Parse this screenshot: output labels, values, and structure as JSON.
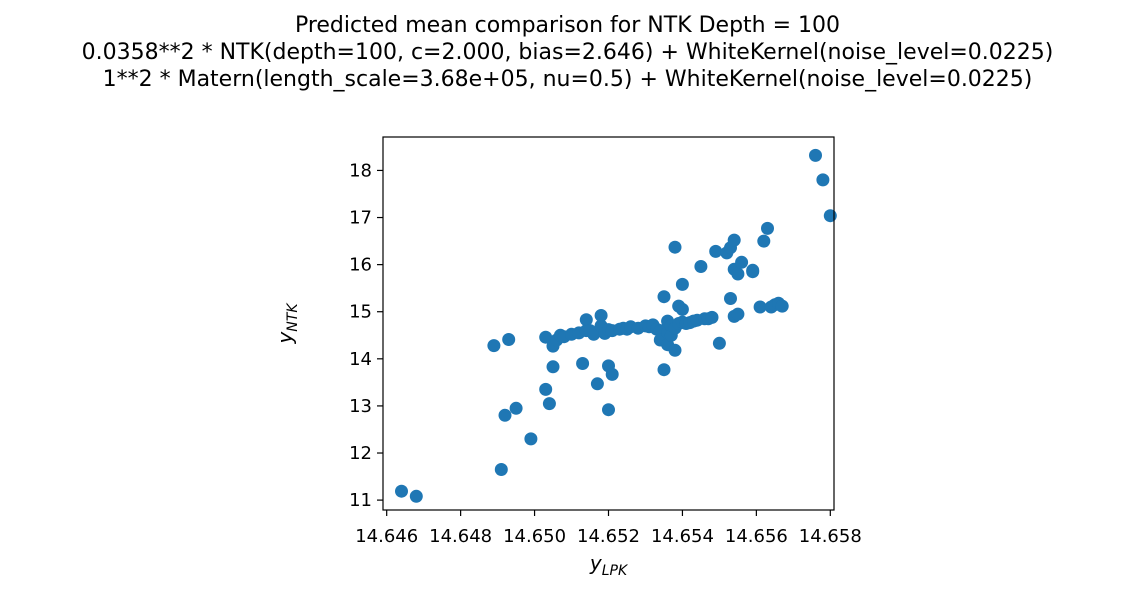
{
  "chart_data": {
    "type": "scatter",
    "title_lines": [
      "Predicted mean comparison for NTK Depth = 100",
      "0.0358**2 * NTK(depth=100, c=2.000, bias=2.646) + WhiteKernel(noise_level=0.0225)",
      "1**2 * Matern(length_scale=3.68e+05, nu=0.5) + WhiteKernel(noise_level=0.0225)"
    ],
    "xlabel": {
      "base": "y",
      "sub": "LPK"
    },
    "ylabel": {
      "base": "y",
      "sub": "NTK"
    },
    "xlim": [
      14.6459,
      14.6581
    ],
    "ylim": [
      10.79,
      18.71
    ],
    "xticks": [
      14.646,
      14.648,
      14.65,
      14.652,
      14.654,
      14.656,
      14.658
    ],
    "xtick_labels": [
      "14.646",
      "14.648",
      "14.650",
      "14.652",
      "14.654",
      "14.656",
      "14.658"
    ],
    "yticks": [
      11,
      12,
      13,
      14,
      15,
      16,
      17,
      18
    ],
    "ytick_labels": [
      "11",
      "12",
      "13",
      "14",
      "15",
      "16",
      "17",
      "18"
    ],
    "grid": false,
    "marker_color": "#1f77b4",
    "points": [
      [
        14.6464,
        11.19
      ],
      [
        14.6468,
        11.08
      ],
      [
        14.6489,
        14.28
      ],
      [
        14.6491,
        11.65
      ],
      [
        14.6492,
        12.8
      ],
      [
        14.6493,
        14.41
      ],
      [
        14.6495,
        12.95
      ],
      [
        14.6499,
        12.3
      ],
      [
        14.6503,
        13.35
      ],
      [
        14.6503,
        14.46
      ],
      [
        14.6504,
        13.05
      ],
      [
        14.6505,
        14.27
      ],
      [
        14.6505,
        13.83
      ],
      [
        14.6506,
        14.4
      ],
      [
        14.6507,
        14.5
      ],
      [
        14.6508,
        14.47
      ],
      [
        14.651,
        14.52
      ],
      [
        14.6512,
        14.55
      ],
      [
        14.6513,
        13.9
      ],
      [
        14.6514,
        14.6
      ],
      [
        14.6514,
        14.83
      ],
      [
        14.6515,
        14.6
      ],
      [
        14.6516,
        14.52
      ],
      [
        14.6517,
        13.47
      ],
      [
        14.6518,
        14.7
      ],
      [
        14.6518,
        14.92
      ],
      [
        14.6519,
        14.54
      ],
      [
        14.652,
        14.62
      ],
      [
        14.652,
        12.92
      ],
      [
        14.652,
        13.85
      ],
      [
        14.6521,
        13.67
      ],
      [
        14.6521,
        14.6
      ],
      [
        14.6523,
        14.63
      ],
      [
        14.6524,
        14.65
      ],
      [
        14.6525,
        14.63
      ],
      [
        14.6526,
        14.68
      ],
      [
        14.6528,
        14.65
      ],
      [
        14.653,
        14.7
      ],
      [
        14.6531,
        14.68
      ],
      [
        14.6532,
        14.72
      ],
      [
        14.6533,
        14.63
      ],
      [
        14.6534,
        14.6
      ],
      [
        14.6534,
        14.4
      ],
      [
        14.6535,
        15.32
      ],
      [
        14.6535,
        13.77
      ],
      [
        14.6536,
        14.55
      ],
      [
        14.6536,
        14.3
      ],
      [
        14.6536,
        14.8
      ],
      [
        14.6537,
        14.7
      ],
      [
        14.6537,
        14.5
      ],
      [
        14.6538,
        14.65
      ],
      [
        14.6538,
        14.18
      ],
      [
        14.6538,
        16.37
      ],
      [
        14.6539,
        14.75
      ],
      [
        14.6539,
        15.12
      ],
      [
        14.654,
        15.05
      ],
      [
        14.654,
        15.58
      ],
      [
        14.654,
        14.78
      ],
      [
        14.6541,
        14.75
      ],
      [
        14.6542,
        14.77
      ],
      [
        14.6543,
        14.8
      ],
      [
        14.6544,
        14.82
      ],
      [
        14.6545,
        15.96
      ],
      [
        14.6546,
        14.85
      ],
      [
        14.6547,
        14.85
      ],
      [
        14.6548,
        14.88
      ],
      [
        14.6549,
        16.28
      ],
      [
        14.655,
        14.33
      ],
      [
        14.6552,
        16.25
      ],
      [
        14.6553,
        16.36
      ],
      [
        14.6553,
        15.28
      ],
      [
        14.6554,
        16.52
      ],
      [
        14.6554,
        14.9
      ],
      [
        14.6554,
        15.9
      ],
      [
        14.6555,
        15.8
      ],
      [
        14.6555,
        14.95
      ],
      [
        14.6556,
        16.05
      ],
      [
        14.6559,
        15.85
      ],
      [
        14.6559,
        15.88
      ],
      [
        14.6561,
        15.1
      ],
      [
        14.6562,
        16.5
      ],
      [
        14.6563,
        16.77
      ],
      [
        14.6564,
        15.1
      ],
      [
        14.6565,
        15.15
      ],
      [
        14.6566,
        15.18
      ],
      [
        14.6567,
        15.12
      ],
      [
        14.6576,
        18.32
      ],
      [
        14.6578,
        17.8
      ],
      [
        14.658,
        17.04
      ]
    ]
  }
}
